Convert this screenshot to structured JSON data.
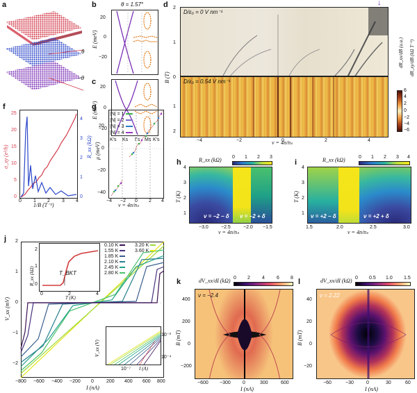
{
  "panels": {
    "a": {
      "label": "a",
      "theta": "θ",
      "minus_theta": "−θ"
    },
    "b": {
      "label": "b",
      "title": "θ = 1.57°",
      "ylabel": "E (meV)",
      "yticks": [
        "20",
        "0",
        "−20"
      ]
    },
    "c": {
      "label": "c",
      "ylabel": "E (meV)",
      "yticks": [
        "20",
        "0",
        "−20"
      ],
      "xticks": [
        "K′s",
        "Ks",
        "Γs",
        "Ms",
        "K′s"
      ]
    },
    "d": {
      "label": "d",
      "top_text": "D/ε₀ = 0 V nm⁻¹",
      "bottom_text": "D/ε₀ = 0.54 V nm⁻¹",
      "ylabel": "B (T)",
      "xlabel": "ν = 4n/nₛ",
      "yticks": [
        "2",
        "1",
        "0",
        "1",
        "2"
      ],
      "xticks": [
        "−4",
        "−2",
        "0",
        "2",
        "4"
      ],
      "cbar_label": "dR_xx/dB (a.u.)",
      "cbar_label2": "dR_xy/dB (kΩ T⁻¹)",
      "cbar_ticks": [
        "6",
        "4",
        "2",
        "0",
        "−2",
        "−4",
        "−6"
      ],
      "arrow": "↓"
    },
    "f": {
      "label": "f",
      "ylabel_left": "σ_xy (e²/h)",
      "ylabel_right": "R_xx (kΩ)",
      "xlabel": "1/B (T⁻¹)",
      "yticks_left": [
        "0",
        "5",
        "10",
        "15",
        "20",
        "25"
      ],
      "yticks_right": [
        "0",
        "1",
        "2",
        "3",
        "4"
      ],
      "xticks": [
        "0",
        "1",
        "2",
        "3",
        "4"
      ]
    },
    "g": {
      "label": "g",
      "ylabel": "μ (meV)",
      "xlabel": "ν = 4n/nₛ",
      "yticks": [
        "20",
        "0",
        "−20",
        "−40"
      ],
      "xticks": [
        "−4",
        "−2",
        "0",
        "2",
        "4"
      ],
      "legend": [
        "|N| = 1",
        "|N| = 2",
        "|N| = 3",
        "|N| = 4"
      ]
    },
    "h": {
      "label": "h",
      "cbar_label": "R_xx (kΩ)",
      "cbar_ticks": [
        "0",
        "1",
        "2",
        "3"
      ],
      "ylabel": "T (K)",
      "xlabel": "ν = 4n/nₛ",
      "yticks": [
        "4",
        "3",
        "2",
        "1"
      ],
      "xticks": [
        "−3.0",
        "−2.5",
        "−2.0",
        "−1.5"
      ],
      "text_left": "ν = −2 − δ",
      "text_right": "ν = −2 + δ"
    },
    "i": {
      "label": "i",
      "cbar_label": "R_xx (kΩ)",
      "cbar_ticks": [
        "0",
        "1",
        "2",
        "3",
        "4"
      ],
      "ylabel": "T (K)",
      "xlabel": "ν = 4n/nₛ",
      "yticks": [
        "4",
        "3",
        "2",
        "1"
      ],
      "xticks": [
        "1.5",
        "2.0",
        "2.5",
        "3.0"
      ],
      "text_left": "ν = +2 − δ",
      "text_right": "ν = +2 + δ"
    },
    "j": {
      "label": "j",
      "ylabel": "V_xx (mV)",
      "xlabel": "I (nA)",
      "yticks": [
        "2",
        "1",
        "0",
        "−1",
        "−2"
      ],
      "xticks": [
        "−800",
        "−600",
        "−400",
        "−200",
        "0",
        "200",
        "400",
        "600",
        "800"
      ],
      "legend": [
        {
          "t": "0.10 K",
          "c": "#3b0f52"
        },
        {
          "t": "1.55 K",
          "c": "#46327e"
        },
        {
          "t": "1.85 K",
          "c": "#365c8d"
        },
        {
          "t": "2.10 K",
          "c": "#277f8e"
        },
        {
          "t": "2.45 K",
          "c": "#1fa187"
        },
        {
          "t": "2.80 K",
          "c": "#4ac16d"
        },
        {
          "t": "3.20 K",
          "c": "#9fda3a"
        },
        {
          "t": "3.60 K",
          "c": "#e3e418"
        }
      ],
      "inset1": {
        "ylabel": "R_xx (kΩ)",
        "xlabel": "T (K)",
        "yticks": [
          "2",
          "1",
          "0"
        ],
        "xticks": [
          "0",
          "2",
          "4"
        ],
        "annotation": "T_BKT"
      },
      "inset2": {
        "ylabel": "V_xx (V)",
        "xlabel": "I (A)",
        "yticks": [
          "10⁻³",
          "10⁻⁴"
        ],
        "xticks": [
          "10⁻⁷"
        ]
      }
    },
    "k": {
      "label": "k",
      "cbar_label": "dV_xx/dI (kΩ)",
      "cbar_ticks": [
        "0",
        "2",
        "4",
        "6",
        "8"
      ],
      "nu": "ν = −2.4",
      "ylabel": "B (mT)",
      "xlabel": "I (nA)",
      "yticks": [
        "400",
        "200",
        "0",
        "−200",
        "−400"
      ],
      "xticks": [
        "−600",
        "−300",
        "0",
        "300",
        "600"
      ]
    },
    "l": {
      "label": "l",
      "cbar_label": "dV_xx/dI (kΩ)",
      "cbar_ticks": [
        "0",
        "0.5",
        "1.0",
        "1.5"
      ],
      "nu": "ν = 2.22",
      "ylabel": "B (mT)",
      "xlabel": "I (nA)",
      "yticks": [
        "40",
        "20",
        "0",
        "−20",
        "−40"
      ],
      "xticks": [
        "−60",
        "−30",
        "0",
        "30",
        "60"
      ]
    }
  },
  "colors": {
    "red": "#d23a4a",
    "blue": "#2b46c8",
    "purple": "#7a2fb5",
    "orange": "#e07b1a",
    "yellow": "#f2e31a",
    "navy": "#2a2a7a"
  }
}
